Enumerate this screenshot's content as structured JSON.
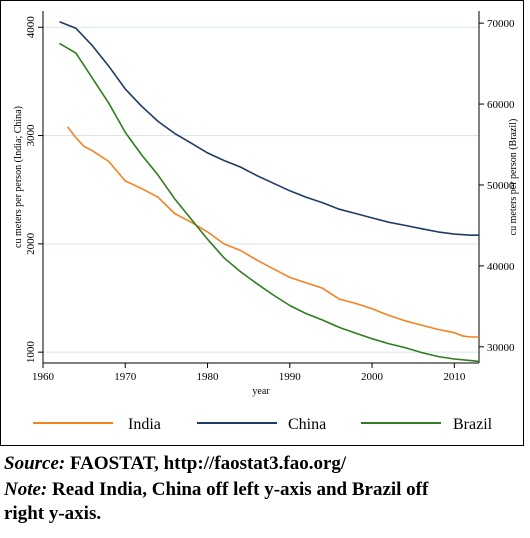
{
  "chart_data": {
    "type": "line",
    "title": "",
    "xlabel": "year",
    "ylabel_left": "cu meters per person (India; China)",
    "ylabel_right": "cu meters per person (Brazil)",
    "xlim": [
      1960,
      2013
    ],
    "ylim_left": [
      900,
      4150
    ],
    "ylim_right": [
      28000,
      71500
    ],
    "xticks": [
      1960,
      1970,
      1980,
      1990,
      2000,
      2010
    ],
    "yticks_left": [
      1000,
      2000,
      3000,
      4000
    ],
    "yticks_right": [
      30000,
      40000,
      50000,
      60000,
      70000
    ],
    "grid": true,
    "legend_position": "bottom",
    "series": [
      {
        "name": "India",
        "axis": "left",
        "color": "#f58220",
        "x": [
          1963,
          1964,
          1965,
          1966,
          1968,
          1970,
          1972,
          1974,
          1976,
          1978,
          1980,
          1982,
          1984,
          1986,
          1988,
          1990,
          1992,
          1994,
          1996,
          1998,
          2000,
          2002,
          2004,
          2006,
          2008,
          2010,
          2011,
          2012,
          2013
        ],
        "values": [
          3080,
          2980,
          2900,
          2860,
          2760,
          2580,
          2510,
          2430,
          2280,
          2200,
          2110,
          2000,
          1940,
          1850,
          1770,
          1690,
          1640,
          1590,
          1490,
          1450,
          1400,
          1340,
          1290,
          1250,
          1210,
          1180,
          1150,
          1140,
          1140
        ]
      },
      {
        "name": "China",
        "axis": "left",
        "color": "#1f3b63",
        "x": [
          1962,
          1964,
          1966,
          1968,
          1970,
          1972,
          1974,
          1976,
          1978,
          1980,
          1982,
          1984,
          1986,
          1988,
          1990,
          1992,
          1994,
          1996,
          1998,
          2000,
          2002,
          2004,
          2006,
          2008,
          2010,
          2012,
          2013
        ],
        "values": [
          4050,
          3990,
          3830,
          3640,
          3430,
          3270,
          3130,
          3020,
          2930,
          2840,
          2770,
          2710,
          2630,
          2560,
          2490,
          2430,
          2380,
          2320,
          2280,
          2240,
          2200,
          2170,
          2140,
          2110,
          2090,
          2080,
          2080
        ]
      },
      {
        "name": "Brazil",
        "axis": "right",
        "color": "#2e7d1e",
        "x": [
          1962,
          1964,
          1966,
          1968,
          1970,
          1972,
          1974,
          1976,
          1978,
          1980,
          1982,
          1984,
          1986,
          1988,
          1990,
          1992,
          1994,
          1996,
          1998,
          2000,
          2002,
          2004,
          2006,
          2008,
          2010,
          2012,
          2013
        ],
        "values": [
          67500,
          66300,
          63200,
          60100,
          56500,
          53700,
          51200,
          48300,
          45800,
          43300,
          41000,
          39300,
          37800,
          36400,
          35100,
          34100,
          33300,
          32400,
          31700,
          31000,
          30400,
          29900,
          29300,
          28800,
          28500,
          28300,
          28200
        ]
      }
    ]
  },
  "caption": {
    "source_label": "Source:",
    "source_text": " FAOSTAT, http://faostat3.fao.org/",
    "note_label": "Note:",
    "note_text_1": " Read India, China off left y-axis and Brazil off",
    "note_text_2": "right y-axis."
  }
}
